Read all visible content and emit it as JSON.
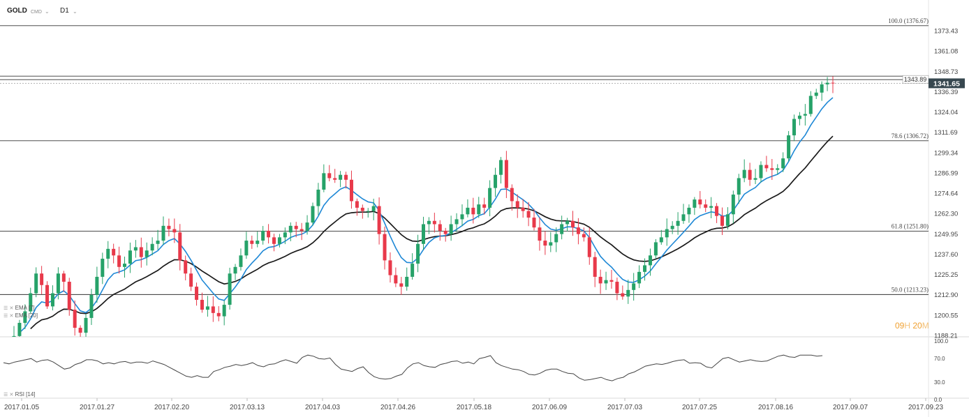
{
  "toolbar": {
    "symbol": "GOLD",
    "feed": "CMD",
    "feed_caret": "⌄",
    "timeframe": "D1",
    "timeframe_caret": "⌄"
  },
  "chart_data": {
    "type": "candlestick",
    "symbol": "GOLD",
    "timeframe": "D1",
    "date_ticks": [
      "2017.01.05",
      "2017.01.27",
      "2017.02.20",
      "2017.03.13",
      "2017.04.03",
      "2017.04.26",
      "2017.05.18",
      "2017.06.09",
      "2017.07.03",
      "2017.07.25",
      "2017.08.16",
      "2017.09.07",
      "2017.09.23"
    ],
    "price_ticks": [
      1373.43,
      1361.08,
      1348.73,
      1336.39,
      1324.04,
      1311.69,
      1299.34,
      1286.99,
      1274.64,
      1262.3,
      1249.95,
      1237.6,
      1225.25,
      1212.9,
      1200.55,
      1188.21
    ],
    "price_tick_labels": [
      "1373.43",
      "1361.08",
      "1348.73",
      "1336.39",
      "1324.04",
      "1311.69",
      "1299.34",
      "1286.99",
      "1274.64",
      "1262.30",
      "1249.95",
      "1237.60",
      "1225.25",
      "1212.90",
      "1200.55",
      "1188.21"
    ],
    "price_range": [
      1188.21,
      1382.4
    ],
    "current_price": 1341.65,
    "current_price_label": "1341.65",
    "marker_price": 1343.89,
    "marker_price_label": "1343.89",
    "resistance_price": 1346.0,
    "fibonacci": [
      {
        "level": 100.0,
        "price": 1376.67,
        "label": "100.0 (1376.67)"
      },
      {
        "level": 78.6,
        "price": 1306.72,
        "label": "78.6 (1306.72)"
      },
      {
        "level": 61.8,
        "price": 1251.8,
        "label": "61.8 (1251.80)"
      },
      {
        "level": 50.0,
        "price": 1213.23,
        "label": "50.0 (1213.23)"
      }
    ],
    "closes": [
      1188,
      1196,
      1203,
      1214,
      1226,
      1219,
      1206,
      1214,
      1226,
      1221,
      1204,
      1193,
      1190,
      1199,
      1213,
      1224,
      1235,
      1241,
      1237,
      1230,
      1232,
      1240,
      1242,
      1236,
      1240,
      1244,
      1246,
      1255,
      1253,
      1251,
      1234,
      1226,
      1218,
      1210,
      1204,
      1206,
      1202,
      1200,
      1207,
      1226,
      1230,
      1237,
      1246,
      1244,
      1246,
      1252,
      1248,
      1244,
      1248,
      1251,
      1255,
      1253,
      1252,
      1257,
      1267,
      1277,
      1287,
      1284,
      1283,
      1286,
      1283,
      1270,
      1266,
      1264,
      1264,
      1267,
      1250,
      1234,
      1225,
      1220,
      1218,
      1224,
      1232,
      1244,
      1256,
      1258,
      1256,
      1252,
      1250,
      1256,
      1259,
      1262,
      1266,
      1262,
      1268,
      1266,
      1278,
      1286,
      1295,
      1278,
      1270,
      1266,
      1264,
      1260,
      1254,
      1246,
      1243,
      1245,
      1250,
      1256,
      1258,
      1254,
      1250,
      1248,
      1236,
      1224,
      1220,
      1222,
      1221,
      1214,
      1212,
      1216,
      1220,
      1227,
      1231,
      1237,
      1245,
      1248,
      1253,
      1255,
      1258,
      1262,
      1266,
      1271,
      1268,
      1266,
      1267,
      1261,
      1255,
      1262,
      1274,
      1284,
      1289,
      1283,
      1284,
      1292,
      1290,
      1289,
      1290,
      1296,
      1310,
      1320,
      1322,
      1323,
      1334,
      1336,
      1341,
      1342,
      1341.65
    ],
    "ema_legend": [
      "EMA [7]",
      "EMA [20]"
    ],
    "ema_colors": {
      "fast": "#1e88d6",
      "slow": "#1a1a1a"
    },
    "candle_colors": {
      "up": "#26a269",
      "down": "#e8394a"
    },
    "rsi": {
      "label": "RSI [14]",
      "ticks": [
        100.0,
        70.0,
        30.0,
        0.0
      ],
      "tick_labels": [
        "100.0",
        "70.0",
        "30.0",
        "0.0"
      ],
      "values": [
        63,
        61,
        64,
        66,
        68,
        70,
        64,
        67,
        68,
        64,
        58,
        52,
        54,
        60,
        63,
        68,
        68,
        66,
        61,
        63,
        61,
        64,
        65,
        62,
        64,
        64,
        62,
        66,
        63,
        60,
        55,
        50,
        45,
        40,
        38,
        41,
        38,
        38,
        48,
        51,
        55,
        57,
        60,
        58,
        60,
        63,
        58,
        56,
        60,
        61,
        65,
        68,
        65,
        62,
        72,
        76,
        74,
        70,
        69,
        71,
        60,
        52,
        50,
        48,
        53,
        56,
        46,
        39,
        36,
        35,
        36,
        40,
        43,
        54,
        61,
        63,
        58,
        56,
        55,
        60,
        62,
        65,
        66,
        62,
        64,
        61,
        70,
        72,
        75,
        63,
        58,
        55,
        52,
        51,
        48,
        43,
        42,
        45,
        50,
        52,
        52,
        48,
        45,
        44,
        37,
        33,
        34,
        36,
        38,
        34,
        32,
        36,
        38,
        44,
        47,
        52,
        57,
        59,
        61,
        60,
        62,
        65,
        67,
        68,
        62,
        63,
        62,
        56,
        54,
        62,
        70,
        72,
        68,
        64,
        66,
        68,
        66,
        65,
        66,
        70,
        74,
        76,
        73,
        72,
        76,
        76,
        76,
        74,
        75
      ]
    },
    "countdown": {
      "h": "09",
      "h_unit": "H",
      "m": "20",
      "m_unit": "M"
    }
  }
}
